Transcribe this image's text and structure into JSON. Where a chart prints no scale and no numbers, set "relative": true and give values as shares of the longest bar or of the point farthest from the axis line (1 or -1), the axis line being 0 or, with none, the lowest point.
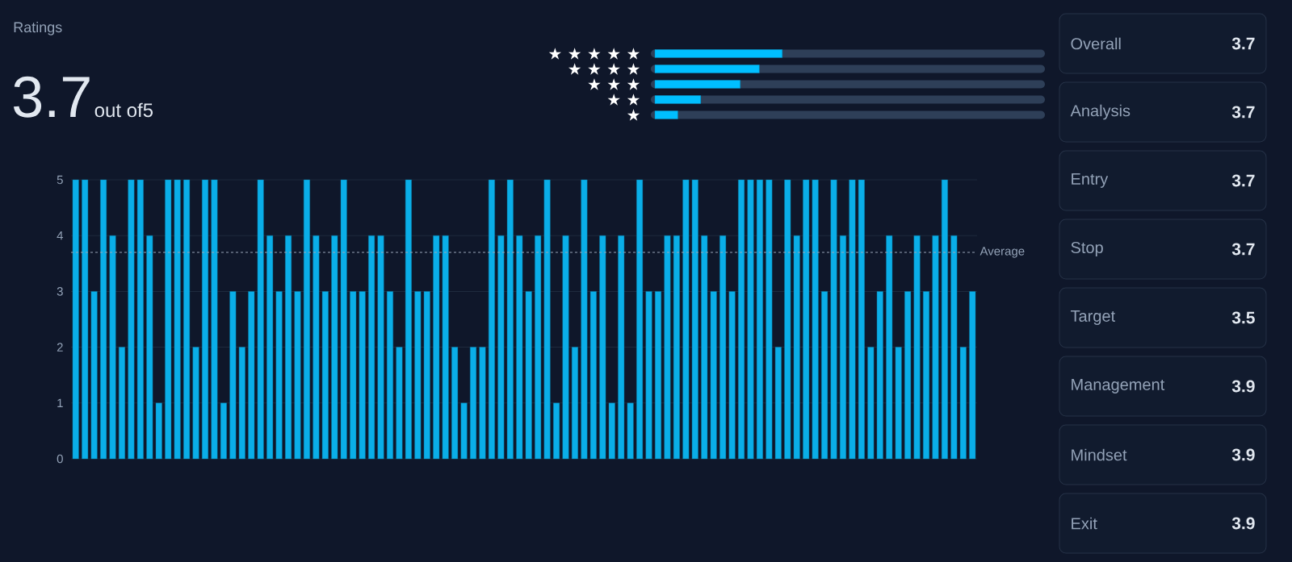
{
  "chart_data": [
    {
      "type": "other",
      "title": "Ratings",
      "values": [
        3.7
      ],
      "value_labels": [
        "3.7"
      ],
      "annotations": [
        "out of5"
      ]
    },
    {
      "type": "bar",
      "orientation": "horizontal",
      "relative": true,
      "categories": [
        "★ ★ ★ ★ ★",
        "★ ★ ★ ★",
        "★ ★ ★",
        "★ ★",
        "★"
      ],
      "values": [
        1,
        0.82,
        0.67,
        0.36,
        0.18
      ],
      "color": "#00bfff"
    },
    {
      "type": "bar",
      "categories": [
        null,
        null,
        null,
        null,
        null,
        null,
        null,
        null,
        null,
        null,
        null,
        null,
        null,
        null,
        null,
        null,
        null,
        null,
        null,
        null,
        null,
        null,
        null,
        null,
        null,
        null,
        null,
        null,
        null,
        null,
        null,
        null,
        null,
        null,
        null,
        null,
        null,
        null,
        null,
        null,
        null,
        null,
        null,
        null,
        null,
        null,
        null,
        null,
        null,
        null,
        null,
        null,
        null,
        null,
        null,
        null,
        null,
        null,
        null,
        null,
        null,
        null,
        null,
        null,
        null,
        null,
        null,
        null,
        null,
        null,
        null,
        null,
        null,
        null,
        null,
        null,
        null,
        null,
        null,
        null,
        null,
        null,
        null,
        null,
        null,
        null,
        null,
        null,
        null,
        null,
        null,
        null,
        null,
        null,
        null,
        null,
        null,
        null
      ],
      "values": [
        5,
        5,
        3,
        5,
        4,
        2,
        5,
        5,
        4,
        1,
        5,
        5,
        5,
        2,
        5,
        5,
        1,
        3,
        2,
        3,
        5,
        4,
        3,
        4,
        3,
        5,
        4,
        3,
        4,
        5,
        3,
        3,
        4,
        4,
        3,
        2,
        5,
        3,
        3,
        4,
        4,
        2,
        1,
        2,
        2,
        5,
        4,
        5,
        4,
        3,
        4,
        5,
        1,
        4,
        2,
        5,
        3,
        4,
        1,
        4,
        1,
        5,
        3,
        3,
        4,
        4,
        5,
        5,
        4,
        3,
        4,
        3,
        5,
        5,
        5,
        5,
        2,
        5,
        4,
        5,
        5,
        3,
        5,
        4,
        5,
        5,
        2,
        3,
        4,
        2,
        3,
        4,
        3,
        4,
        5,
        4,
        2,
        3
      ],
      "color": "#0aaee8",
      "ylim": [
        0,
        5
      ],
      "yticks": [
        0,
        1,
        2,
        3,
        4,
        5
      ],
      "grid": "y",
      "ref_lines": [
        {
          "axis": "y",
          "value": 3.7,
          "label": "Average",
          "color": "#9aa6b8",
          "line_style": "dashed"
        }
      ]
    },
    {
      "type": "other",
      "categories": [
        "Overall",
        "Analysis",
        "Entry",
        "Stop",
        "Target",
        "Management",
        "Mindset",
        "Exit"
      ],
      "values": [
        3.7,
        3.7,
        3.7,
        3.7,
        3.5,
        3.9,
        3.9,
        3.9
      ],
      "value_labels": [
        "3.7",
        "3.7",
        "3.7",
        "3.7",
        "3.5",
        "3.9",
        "3.9",
        "3.9"
      ]
    }
  ]
}
